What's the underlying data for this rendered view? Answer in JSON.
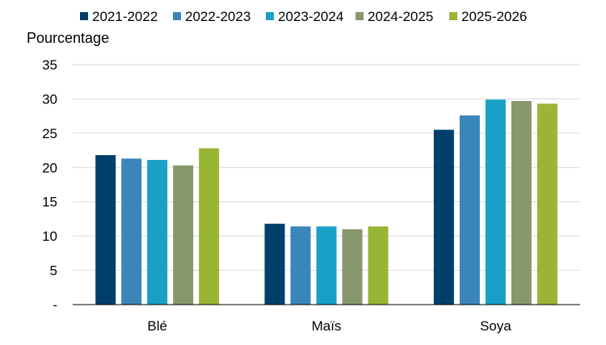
{
  "chart_data": {
    "type": "bar",
    "title": "",
    "xlabel": "",
    "ylabel": "Pourcentage",
    "categories": [
      "Blé",
      "Maïs",
      "Soya"
    ],
    "series": [
      {
        "name": "2021-2022",
        "values": [
          21.8,
          11.8,
          25.5
        ],
        "color": "#003f6b"
      },
      {
        "name": "2022-2023",
        "values": [
          21.3,
          11.4,
          27.6
        ],
        "color": "#3a86b9"
      },
      {
        "name": "2023-2024",
        "values": [
          21.1,
          11.4,
          29.9
        ],
        "color": "#19a0c6"
      },
      {
        "name": "2024-2025",
        "values": [
          20.3,
          11.0,
          29.7
        ],
        "color": "#87986c"
      },
      {
        "name": "2025-2026",
        "values": [
          22.8,
          11.4,
          29.3
        ],
        "color": "#98b534"
      }
    ],
    "ylim": [
      0,
      35
    ],
    "yticks": [
      0,
      5,
      10,
      15,
      20,
      25,
      30,
      35
    ],
    "ytick_labels": [
      "-",
      "5",
      "10",
      "15",
      "20",
      "25",
      "30",
      "35"
    ],
    "grid": true,
    "legend_position": "top"
  }
}
